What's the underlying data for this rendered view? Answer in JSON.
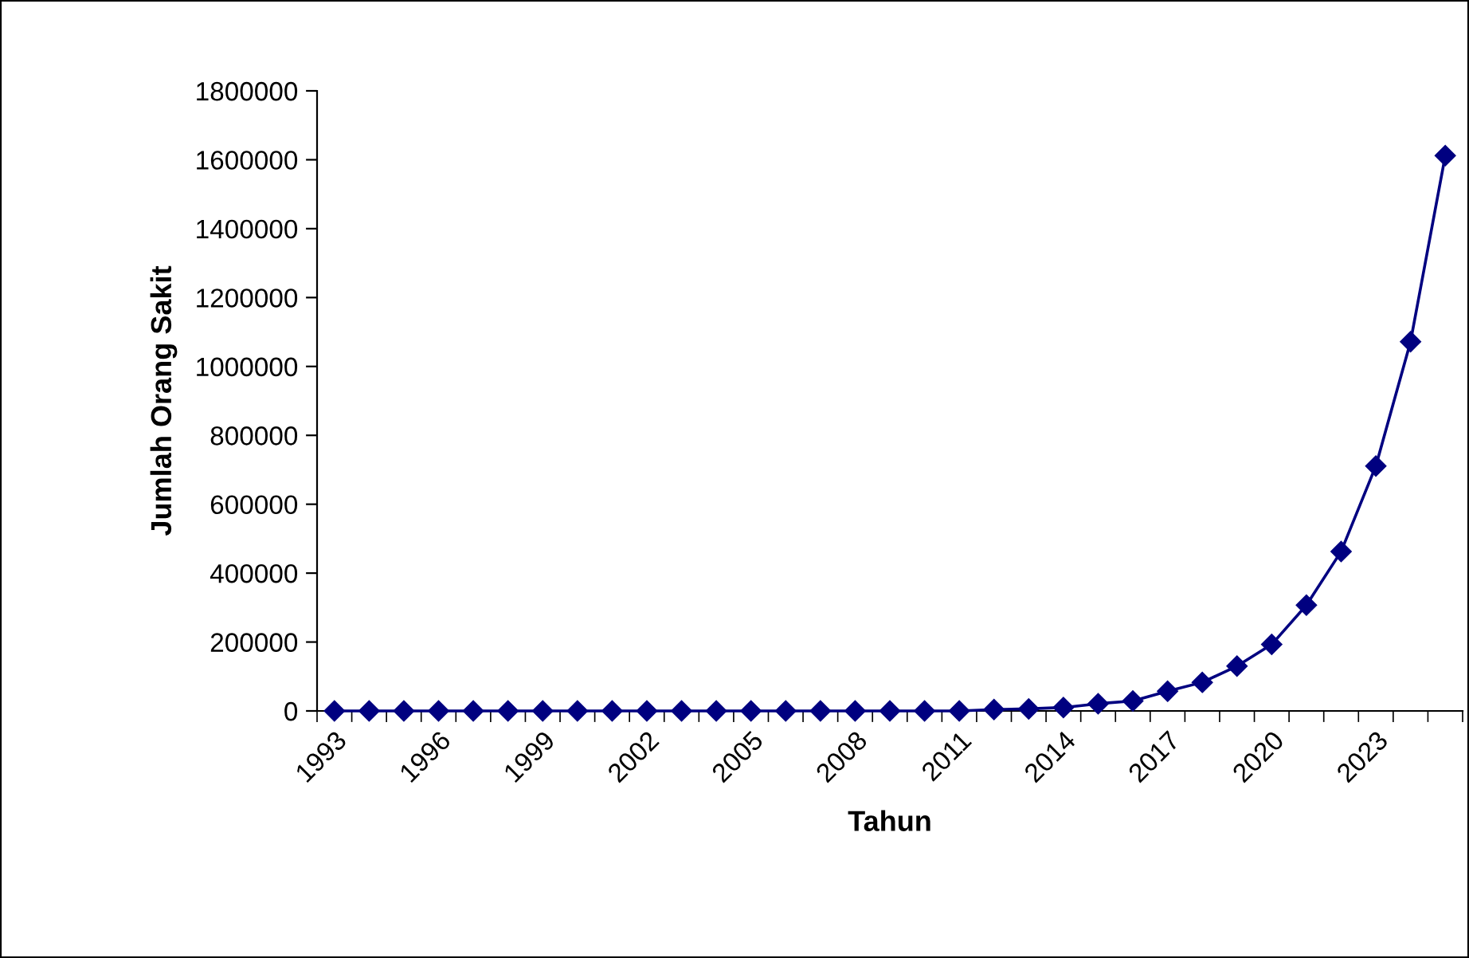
{
  "chart_data": {
    "type": "line",
    "xlabel": "Tahun",
    "ylabel": "Jumlah Orang Sakit",
    "categories": [
      "1993",
      null,
      null,
      "1996",
      null,
      null,
      "1999",
      null,
      null,
      "2002",
      null,
      null,
      "2005",
      null,
      null,
      "2008",
      null,
      null,
      "2011",
      null,
      null,
      "2014",
      null,
      null,
      "2017",
      null,
      null,
      "2020",
      null,
      null,
      "2023",
      null,
      null
    ],
    "series": [
      {
        "color": "#000080",
        "values": [
          0,
          0,
          0,
          0,
          0,
          0,
          0,
          0,
          0,
          0,
          0,
          0,
          0,
          0,
          0,
          0,
          0,
          0,
          0,
          4000,
          6000,
          10000,
          21000,
          29000,
          57000,
          83000,
          130000,
          193000,
          307000,
          463000,
          711000,
          1072000,
          1612000
        ]
      }
    ],
    "ylim": [
      0,
      1800000
    ],
    "yticks": [
      0,
      200000,
      400000,
      600000,
      800000,
      1000000,
      1200000,
      1400000,
      1600000,
      1800000
    ],
    "grid": false,
    "legend": false,
    "marker": "diamond",
    "line_style": "solid"
  }
}
